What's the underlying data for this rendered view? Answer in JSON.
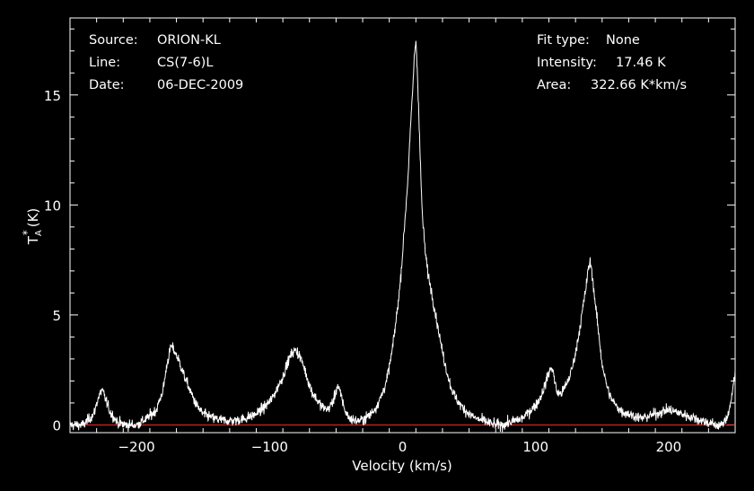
{
  "chart_data": {
    "type": "line",
    "title": "",
    "xlabel": "Velocity (km/s)",
    "ylabel_main": "T",
    "ylabel_sub": "A",
    "ylabel_sup": "*",
    "ylabel_unit": "(K)",
    "xlim": [
      -250,
      250
    ],
    "ylim": [
      -0.35,
      18.5
    ],
    "x_ticks": [
      -200,
      -100,
      0,
      100,
      200
    ],
    "x_tick_labels": [
      "−200",
      "−100",
      "0",
      "100",
      "200"
    ],
    "y_ticks": [
      0,
      5,
      10,
      15
    ],
    "y_tick_labels": [
      "0",
      "5",
      "10",
      "15"
    ],
    "grid": false,
    "baseline": 0,
    "spectrum_color": "#ffffff",
    "baseline_color": "#ff2a2a",
    "series": [
      {
        "x": [
          -250,
          -240,
          -232,
          -229,
          -226,
          -224,
          -220,
          -214,
          -208,
          -200,
          -192,
          -185,
          -180,
          -177,
          -174,
          -171,
          -168,
          -164,
          -160,
          -155,
          -150,
          -142,
          -134,
          -126,
          -118,
          -110,
          -104,
          -98,
          -94,
          -90,
          -86,
          -83,
          -80,
          -77,
          -74,
          -71,
          -68,
          -64,
          -60,
          -56,
          -52,
          -49,
          -46,
          -43,
          -40,
          -36,
          -32,
          -28,
          -24,
          -20,
          -16,
          -12,
          -8,
          -5,
          -2,
          0,
          2,
          4,
          5,
          6,
          7,
          8,
          9,
          10,
          11,
          12,
          13,
          14,
          15,
          17,
          19,
          21,
          24,
          27,
          30,
          33,
          36,
          40,
          45,
          50,
          55,
          60,
          65,
          70,
          75,
          80,
          85,
          90,
          95,
          100,
          104,
          107,
          109,
          111,
          112,
          113,
          114,
          115,
          116,
          118,
          120,
          122,
          125,
          128,
          131,
          134,
          136,
          138,
          139,
          140,
          141,
          142,
          143,
          144,
          146,
          148,
          150,
          153,
          156,
          160,
          165,
          170,
          175,
          180,
          185,
          190,
          195,
          200,
          205,
          210,
          215,
          220,
          225,
          230,
          235,
          240,
          243,
          245,
          247,
          248,
          249,
          250
        ],
        "y": [
          0.0,
          0.0,
          0.5,
          1.2,
          1.6,
          1.3,
          0.6,
          0.1,
          0.0,
          0.0,
          0.3,
          0.7,
          1.6,
          2.8,
          3.6,
          3.3,
          2.9,
          2.2,
          1.6,
          0.9,
          0.5,
          0.3,
          0.2,
          0.2,
          0.3,
          0.5,
          0.8,
          1.2,
          1.7,
          2.2,
          2.9,
          3.3,
          3.4,
          3.1,
          2.6,
          2.0,
          1.5,
          1.1,
          0.8,
          0.7,
          1.1,
          1.8,
          1.3,
          0.6,
          0.3,
          0.2,
          0.2,
          0.3,
          0.5,
          0.8,
          1.3,
          2.0,
          3.3,
          4.7,
          6.3,
          7.8,
          9.5,
          11.2,
          12.4,
          13.5,
          14.6,
          15.7,
          16.9,
          17.46,
          16.2,
          14.6,
          12.6,
          10.8,
          9.4,
          7.9,
          6.9,
          6.3,
          5.3,
          4.3,
          3.3,
          2.5,
          1.8,
          1.2,
          0.8,
          0.5,
          0.3,
          0.2,
          0.1,
          0.0,
          0.0,
          0.1,
          0.2,
          0.3,
          0.6,
          0.9,
          1.3,
          1.8,
          2.2,
          2.5,
          2.6,
          2.5,
          2.1,
          1.8,
          1.5,
          1.4,
          1.5,
          1.7,
          2.1,
          2.7,
          3.6,
          4.7,
          5.5,
          6.3,
          6.8,
          7.2,
          7.4,
          7.1,
          6.6,
          6.0,
          4.9,
          3.8,
          2.8,
          1.9,
          1.3,
          0.9,
          0.6,
          0.5,
          0.4,
          0.3,
          0.4,
          0.5,
          0.6,
          0.7,
          0.6,
          0.5,
          0.4,
          0.3,
          0.2,
          0.1,
          0.0,
          0.0,
          0.2,
          0.6,
          1.1,
          1.6,
          2.0,
          2.2
        ]
      }
    ],
    "noise_rms": 0.12
  },
  "info_left": [
    {
      "key": "Source:",
      "value": "ORION-KL"
    },
    {
      "key": "Line:",
      "value": "CS(7-6)L"
    },
    {
      "key": "Date:",
      "value": "06-DEC-2009"
    }
  ],
  "info_right": [
    {
      "key": "Fit type:",
      "value": "None"
    },
    {
      "key": "Intensity:",
      "value": "17.46 K"
    },
    {
      "key": "Area:",
      "value": "322.66 K*km/s"
    }
  ]
}
